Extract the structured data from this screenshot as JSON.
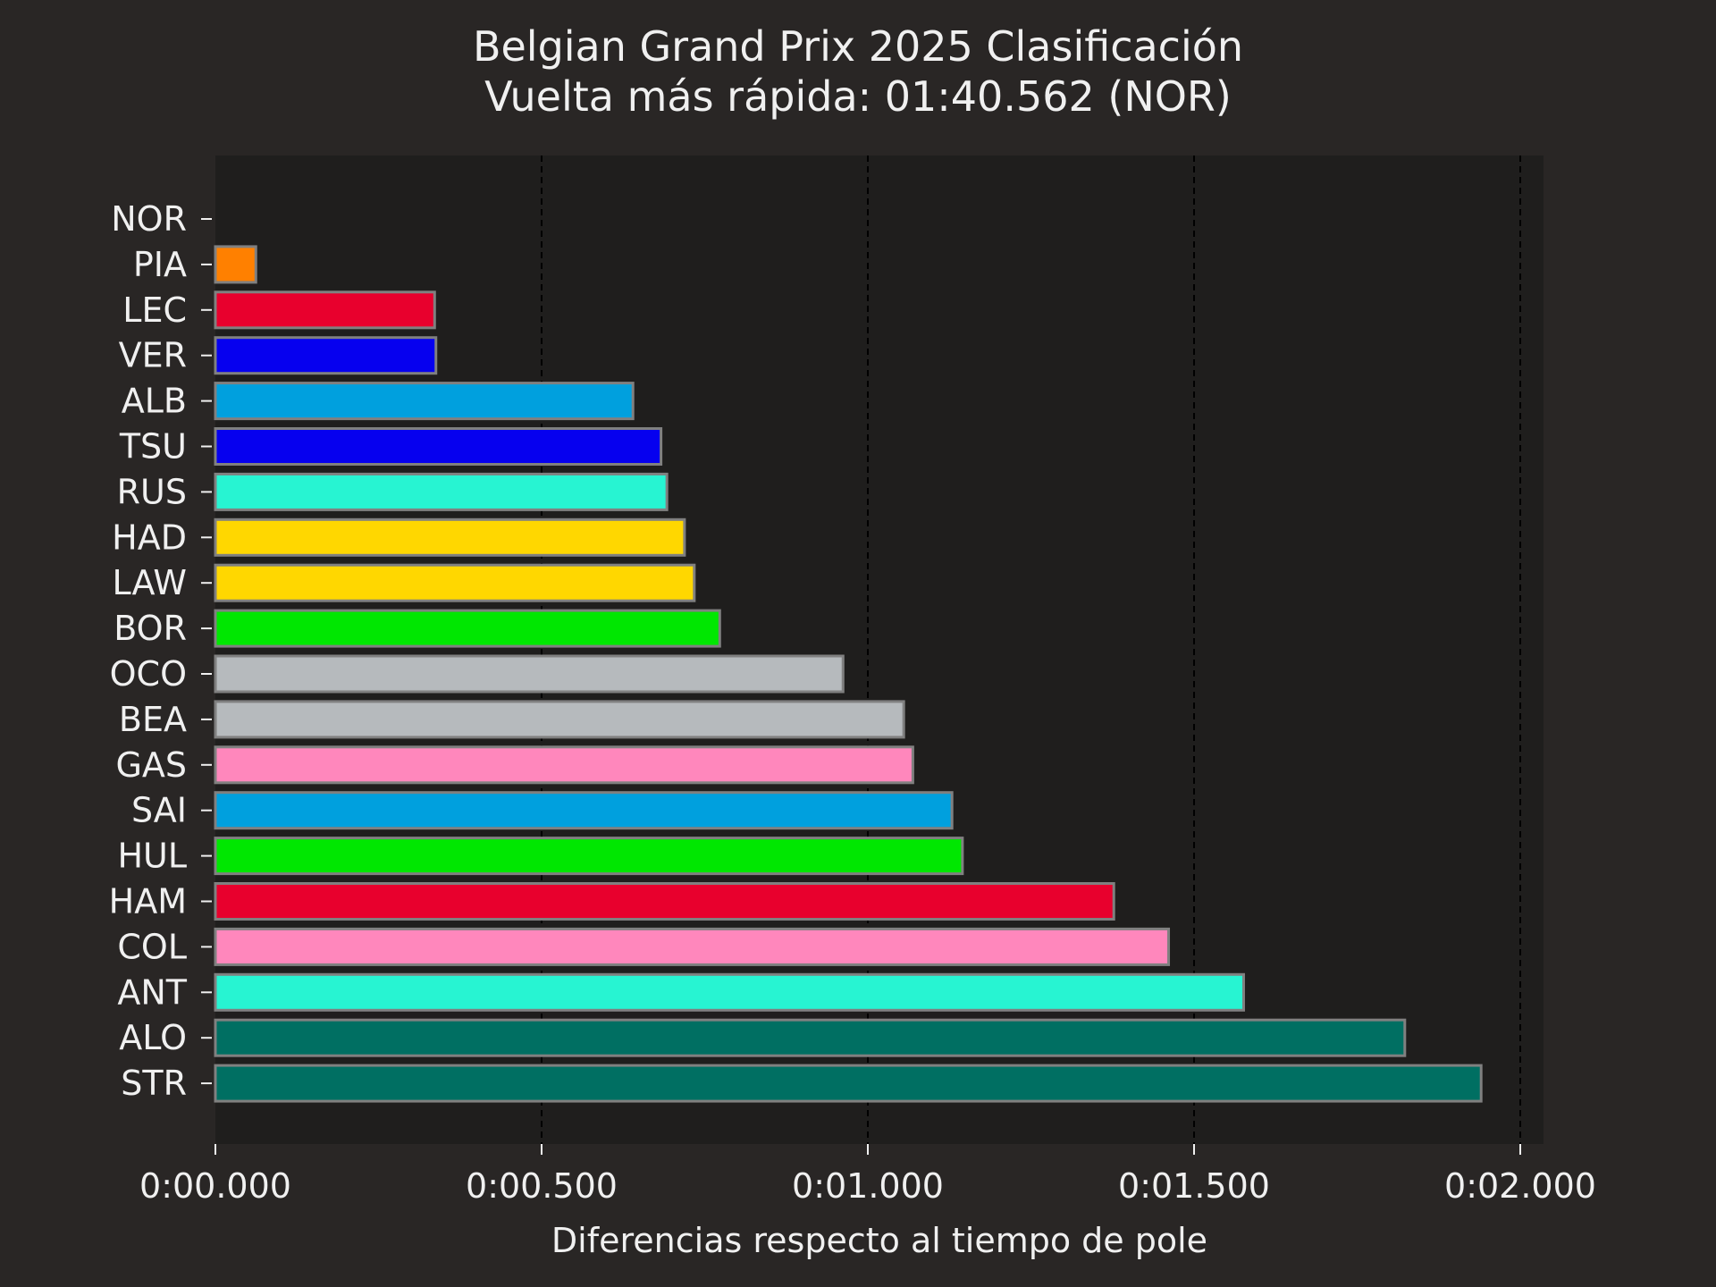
{
  "chart_data": {
    "type": "bar",
    "orientation": "horizontal",
    "title": "Belgian Grand Prix 2025 Clasificación",
    "subtitle": "Vuelta más rápida: 01:40.562 (NOR)",
    "xlabel": "Diferencias respecto al tiempo de pole",
    "ylabel": "",
    "xlim": [
      0,
      2.04
    ],
    "grid": "vertical dashed",
    "x_ticks": [
      {
        "value": 0,
        "label": "0:00.000"
      },
      {
        "value": 0.5,
        "label": "0:00.500"
      },
      {
        "value": 1.0,
        "label": "0:01.000"
      },
      {
        "value": 1.5,
        "label": "0:01.500"
      },
      {
        "value": 2.0,
        "label": "0:02.000"
      }
    ],
    "categories": [
      "NOR",
      "PIA",
      "LEC",
      "VER",
      "ALB",
      "TSU",
      "RUS",
      "HAD",
      "LAW",
      "BOR",
      "OCO",
      "BEA",
      "GAS",
      "SAI",
      "HUL",
      "HAM",
      "COL",
      "ANT",
      "ALO",
      "STR"
    ],
    "values": [
      0.0,
      0.062,
      0.336,
      0.338,
      0.64,
      0.683,
      0.692,
      0.719,
      0.734,
      0.773,
      0.962,
      1.055,
      1.069,
      1.129,
      1.145,
      1.377,
      1.461,
      1.576,
      1.823,
      1.94
    ],
    "colors": [
      "#ff8000",
      "#ff8000",
      "#e8002d",
      "#0600ef",
      "#00a0de",
      "#0600ef",
      "#27f4d2",
      "#ffd700",
      "#ffd700",
      "#00e701",
      "#b6babd",
      "#b6babd",
      "#ff87bc",
      "#00a0de",
      "#00e701",
      "#e8002d",
      "#ff87bc",
      "#27f4d2",
      "#006f62",
      "#006f62"
    ]
  },
  "style": {
    "figure_bg": "#292625",
    "plot_bg": "#1f1e1d",
    "grid_color": "#000000",
    "bar_edge": "#808080",
    "text_color": "#f0f0f0"
  }
}
